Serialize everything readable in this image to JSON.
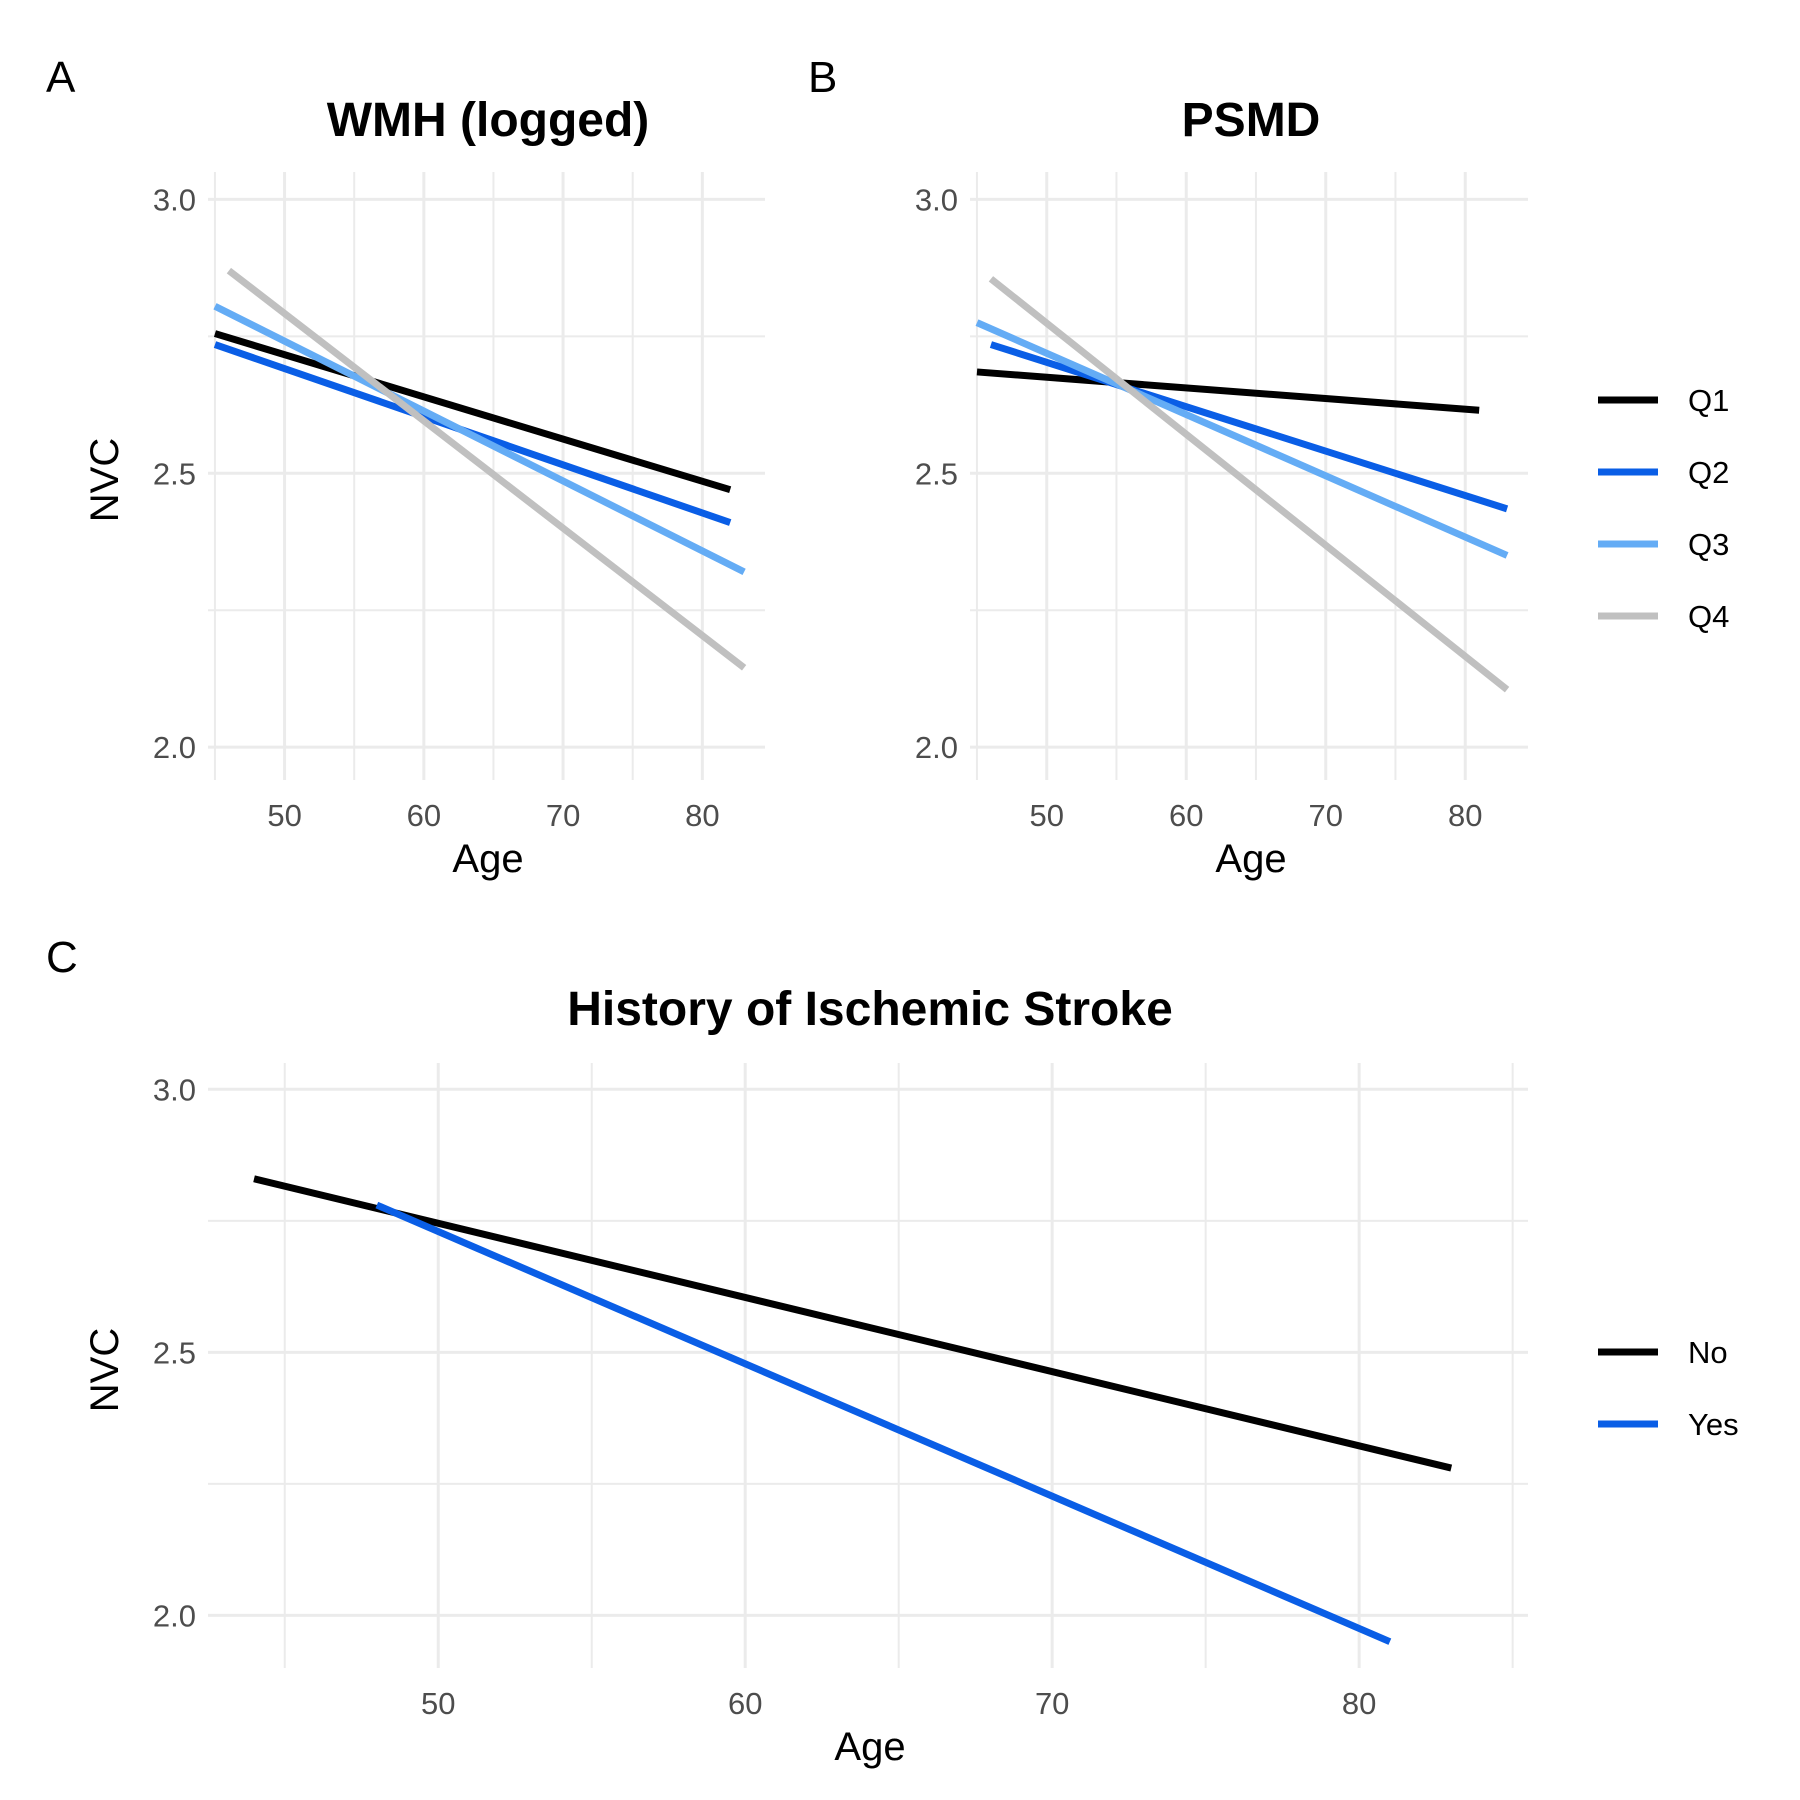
{
  "figure": {
    "panels": [
      {
        "letter": "A"
      },
      {
        "letter": "B"
      },
      {
        "letter": "C"
      }
    ]
  },
  "colors": {
    "Q1": "#000000",
    "Q2": "#0a5ee6",
    "Q3": "#64acf5",
    "Q4": "#c0c0c0",
    "No": "#000000",
    "Yes": "#0a5ee6",
    "grid": "#ebebeb",
    "tick_text": "#4d4d4d"
  },
  "chart_data": [
    {
      "type": "line",
      "title": "WMH (logged)",
      "xlabel": "Age",
      "ylabel": "NVC",
      "xlim": [
        44.5,
        84.5
      ],
      "ylim": [
        1.94,
        3.05
      ],
      "xticks": [
        50,
        60,
        70,
        80
      ],
      "yticks": [
        2.0,
        2.5,
        3.0
      ],
      "ytick_labels": [
        "2.0",
        "2.5",
        "3.0"
      ],
      "grid": true,
      "series": [
        {
          "name": "Q1",
          "x": [
            45,
            82
          ],
          "y": [
            2.755,
            2.47
          ]
        },
        {
          "name": "Q2",
          "x": [
            45,
            82
          ],
          "y": [
            2.735,
            2.41
          ]
        },
        {
          "name": "Q3",
          "x": [
            45,
            83
          ],
          "y": [
            2.805,
            2.32
          ]
        },
        {
          "name": "Q4",
          "x": [
            46,
            83
          ],
          "y": [
            2.87,
            2.145
          ]
        }
      ]
    },
    {
      "type": "line",
      "title": "PSMD",
      "xlabel": "Age",
      "ylabel": "",
      "xlim": [
        44.5,
        84.5
      ],
      "ylim": [
        1.94,
        3.05
      ],
      "xticks": [
        50,
        60,
        70,
        80
      ],
      "yticks": [
        2.0,
        2.5,
        3.0
      ],
      "ytick_labels": [
        "2.0",
        "2.5",
        "3.0"
      ],
      "grid": true,
      "legend_position": "right",
      "legend": [
        "Q1",
        "Q2",
        "Q3",
        "Q4"
      ],
      "series": [
        {
          "name": "Q1",
          "x": [
            45,
            81
          ],
          "y": [
            2.685,
            2.615
          ]
        },
        {
          "name": "Q2",
          "x": [
            46,
            83
          ],
          "y": [
            2.735,
            2.435
          ]
        },
        {
          "name": "Q3",
          "x": [
            45,
            83
          ],
          "y": [
            2.775,
            2.35
          ]
        },
        {
          "name": "Q4",
          "x": [
            46,
            83
          ],
          "y": [
            2.855,
            2.105
          ]
        }
      ]
    },
    {
      "type": "line",
      "title": "History of Ischemic Stroke",
      "xlabel": "Age",
      "ylabel": "NVC",
      "xlim": [
        42.5,
        85.5
      ],
      "ylim": [
        1.9,
        3.05
      ],
      "xticks": [
        50,
        60,
        70,
        80
      ],
      "yticks": [
        2.0,
        2.5,
        3.0
      ],
      "ytick_labels": [
        "2.0",
        "2.5",
        "3.0"
      ],
      "grid": true,
      "legend_position": "right",
      "legend": [
        "No",
        "Yes"
      ],
      "series": [
        {
          "name": "No",
          "x": [
            44,
            83
          ],
          "y": [
            2.83,
            2.28
          ]
        },
        {
          "name": "Yes",
          "x": [
            48,
            81
          ],
          "y": [
            2.78,
            1.95
          ]
        }
      ]
    }
  ]
}
